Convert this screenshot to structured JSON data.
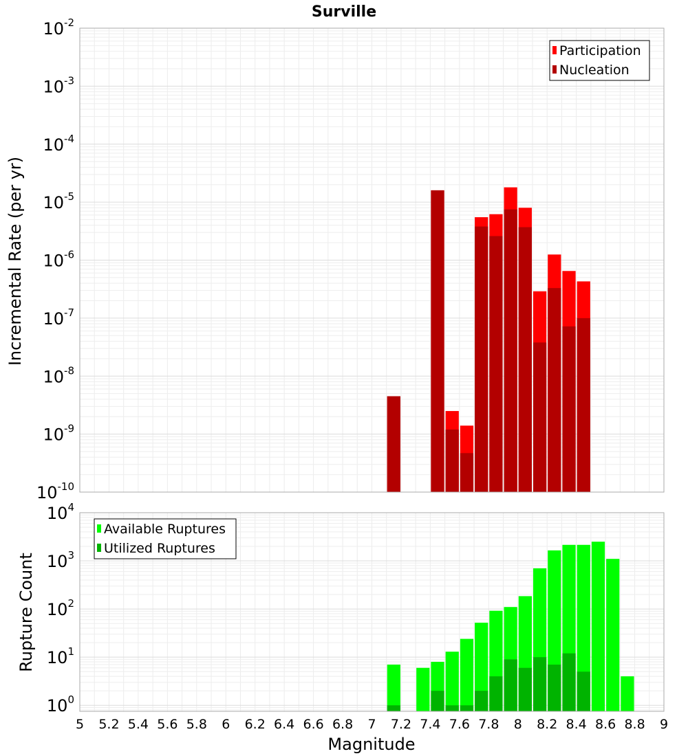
{
  "chart_data": [
    {
      "type": "bar",
      "title": "Surville",
      "ylabel": "Incremental Rate (per yr)",
      "xlabel": "",
      "xlim": [
        5,
        9
      ],
      "ylim": [
        1e-10,
        0.01
      ],
      "yscale": "log",
      "y_ticks": [
        {
          "base": "10",
          "exp": "-2"
        },
        {
          "base": "10",
          "exp": "-3"
        },
        {
          "base": "10",
          "exp": "-4"
        },
        {
          "base": "10",
          "exp": "-5"
        },
        {
          "base": "10",
          "exp": "-6"
        },
        {
          "base": "10",
          "exp": "-7"
        },
        {
          "base": "10",
          "exp": "-8"
        },
        {
          "base": "10",
          "exp": "-9"
        },
        {
          "base": "10",
          "exp": "-10"
        }
      ],
      "bin_width": 0.1,
      "grid": true,
      "legend_position": "top-right",
      "series": [
        {
          "name": "Participation",
          "color": "#ff0000",
          "points": [
            {
              "x": 7.15,
              "y": 4.5e-09
            },
            {
              "x": 7.45,
              "y": 1.6e-05
            },
            {
              "x": 7.55,
              "y": 2.5e-09
            },
            {
              "x": 7.65,
              "y": 1.4e-09
            },
            {
              "x": 7.75,
              "y": 5.5e-06
            },
            {
              "x": 7.85,
              "y": 6.2e-06
            },
            {
              "x": 7.95,
              "y": 1.8e-05
            },
            {
              "x": 8.05,
              "y": 8e-06
            },
            {
              "x": 8.15,
              "y": 2.9e-07
            },
            {
              "x": 8.25,
              "y": 1.25e-06
            },
            {
              "x": 8.35,
              "y": 6.5e-07
            },
            {
              "x": 8.45,
              "y": 4.3e-07
            }
          ]
        },
        {
          "name": "Nucleation",
          "color": "#b30000",
          "points": [
            {
              "x": 7.15,
              "y": 4.5e-09
            },
            {
              "x": 7.45,
              "y": 1.6e-05
            },
            {
              "x": 7.55,
              "y": 1.2e-09
            },
            {
              "x": 7.65,
              "y": 4.7e-10
            },
            {
              "x": 7.75,
              "y": 3.8e-06
            },
            {
              "x": 7.85,
              "y": 2.6e-06
            },
            {
              "x": 7.95,
              "y": 7.5e-06
            },
            {
              "x": 8.05,
              "y": 3.7e-06
            },
            {
              "x": 8.15,
              "y": 3.8e-08
            },
            {
              "x": 8.25,
              "y": 3.3e-07
            },
            {
              "x": 8.35,
              "y": 7.2e-08
            },
            {
              "x": 8.45,
              "y": 1e-07
            }
          ]
        }
      ]
    },
    {
      "type": "bar",
      "title": "",
      "ylabel": "Rupture Count",
      "xlabel": "Magnitude",
      "xlim": [
        5,
        9
      ],
      "ylim": [
        0.75,
        10000
      ],
      "yscale": "log",
      "y_ticks": [
        {
          "base": "10",
          "exp": "4"
        },
        {
          "base": "10",
          "exp": "3"
        },
        {
          "base": "10",
          "exp": "2"
        },
        {
          "base": "10",
          "exp": "1"
        },
        {
          "base": "10",
          "exp": "0"
        }
      ],
      "x_ticks": [
        "5",
        "5.2",
        "5.4",
        "5.6",
        "5.8",
        "6",
        "6.2",
        "6.4",
        "6.6",
        "6.8",
        "7",
        "7.2",
        "7.4",
        "7.6",
        "7.8",
        "8",
        "8.2",
        "8.4",
        "8.6",
        "8.8",
        "9"
      ],
      "bin_width": 0.1,
      "grid": true,
      "legend_position": "top-left",
      "series": [
        {
          "name": "Available Ruptures",
          "color": "#00ff00",
          "points": [
            {
              "x": 7.15,
              "y": 7
            },
            {
              "x": 7.35,
              "y": 6
            },
            {
              "x": 7.45,
              "y": 8
            },
            {
              "x": 7.55,
              "y": 13
            },
            {
              "x": 7.65,
              "y": 24
            },
            {
              "x": 7.75,
              "y": 52
            },
            {
              "x": 7.85,
              "y": 92
            },
            {
              "x": 7.95,
              "y": 110
            },
            {
              "x": 8.05,
              "y": 185
            },
            {
              "x": 8.15,
              "y": 700
            },
            {
              "x": 8.25,
              "y": 1650
            },
            {
              "x": 8.35,
              "y": 2150
            },
            {
              "x": 8.45,
              "y": 2150
            },
            {
              "x": 8.55,
              "y": 2500
            },
            {
              "x": 8.65,
              "y": 1100
            },
            {
              "x": 8.75,
              "y": 4
            }
          ]
        },
        {
          "name": "Utilized Ruptures",
          "color": "#00b300",
          "points": [
            {
              "x": 7.15,
              "y": 1
            },
            {
              "x": 7.45,
              "y": 2
            },
            {
              "x": 7.55,
              "y": 1
            },
            {
              "x": 7.65,
              "y": 1
            },
            {
              "x": 7.75,
              "y": 2
            },
            {
              "x": 7.85,
              "y": 4
            },
            {
              "x": 7.95,
              "y": 9
            },
            {
              "x": 8.05,
              "y": 6
            },
            {
              "x": 8.15,
              "y": 10
            },
            {
              "x": 8.25,
              "y": 7
            },
            {
              "x": 8.35,
              "y": 12
            },
            {
              "x": 8.45,
              "y": 5
            }
          ]
        }
      ]
    }
  ]
}
